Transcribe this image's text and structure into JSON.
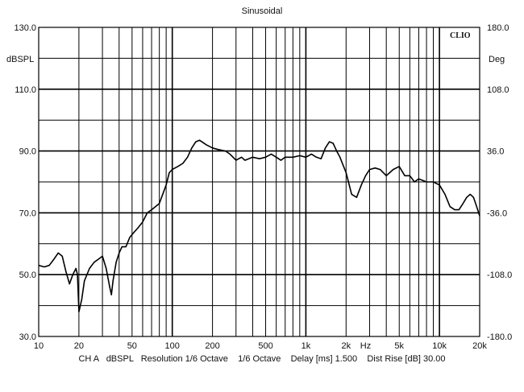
{
  "chart_data": {
    "type": "line",
    "title": "Sinusoidal",
    "watermark": "CLIO",
    "left_axis_unit": "dBSPL",
    "right_axis_unit": "Deg",
    "x_scale": "log",
    "xlim": [
      10,
      20000
    ],
    "ylim": [
      30,
      130
    ],
    "y2lim": [
      -180,
      180
    ],
    "left_ticks": [
      "130.0",
      "110.0",
      "90.0",
      "70.0",
      "50.0",
      "30.0"
    ],
    "left_tick_values": [
      130,
      110,
      90,
      70,
      50,
      30
    ],
    "right_ticks": [
      "180.0",
      "108.0",
      "36.0",
      "-36.0",
      "-108.0",
      "-180.0"
    ],
    "right_tick_values": [
      180,
      108,
      36,
      -36,
      -108,
      -180
    ],
    "x_tick_labels": [
      "10",
      "20",
      "50",
      "100",
      "200",
      "500",
      "1k",
      "2k",
      "Hz",
      "5k",
      "10k",
      "20k"
    ],
    "x_tick_values": [
      10,
      20,
      50,
      100,
      200,
      500,
      1000,
      2000,
      2800,
      5000,
      10000,
      20000
    ],
    "grid": true,
    "series": [
      {
        "color": "#000000",
        "x": [
          10,
          11,
          12,
          13,
          14,
          15,
          16,
          17,
          18,
          19,
          19.5,
          20,
          21,
          22,
          24,
          26,
          28,
          30,
          32,
          34,
          35,
          36,
          38,
          40,
          42,
          45,
          48,
          50,
          55,
          60,
          65,
          70,
          80,
          90,
          95,
          100,
          110,
          120,
          130,
          140,
          150,
          160,
          180,
          200,
          220,
          250,
          270,
          300,
          330,
          350,
          400,
          450,
          500,
          550,
          600,
          650,
          700,
          800,
          900,
          1000,
          1100,
          1200,
          1300,
          1400,
          1500,
          1600,
          1700,
          1800,
          2000,
          2200,
          2400,
          2600,
          2800,
          3000,
          3300,
          3600,
          4000,
          4500,
          5000,
          5500,
          6000,
          6500,
          7000,
          8000,
          9000,
          10000,
          11000,
          12000,
          13000,
          14000,
          15000,
          16000,
          17000,
          18000,
          19000,
          20000
        ],
        "y": [
          53,
          52.5,
          53,
          55,
          57,
          56,
          51,
          47,
          50,
          52,
          50,
          38,
          42,
          48,
          52,
          54,
          55,
          56,
          52,
          46,
          43.5,
          48,
          54,
          57,
          59,
          59,
          62,
          63,
          65,
          67,
          70,
          71,
          73,
          79,
          83,
          84,
          85,
          86,
          88,
          91,
          93,
          93.5,
          92,
          91,
          90.5,
          90,
          89,
          87,
          88,
          87,
          88,
          87.5,
          88,
          89,
          88,
          87,
          88,
          88,
          88.5,
          88,
          89,
          88,
          87.5,
          91,
          93,
          92.5,
          90,
          88,
          83,
          76,
          75,
          79,
          82,
          84,
          84.5,
          84,
          82,
          84,
          85,
          82,
          82,
          80,
          81,
          80,
          80,
          79,
          76,
          72,
          71,
          71,
          73,
          75,
          76,
          75,
          72,
          69
        ]
      }
    ]
  },
  "footer": {
    "text": "CH A   dBSPL   Resolution 1/6 Octave    1/6 Octave    Delay [ms] 1.500    Dist Rise [dB] 30.00"
  }
}
